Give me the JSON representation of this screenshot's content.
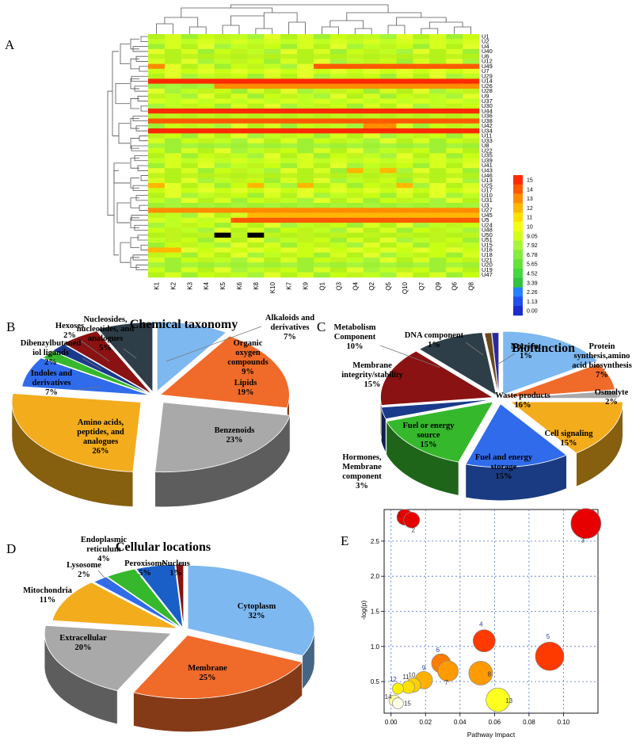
{
  "panels": {
    "A": "A",
    "B": "B",
    "C": "C",
    "D": "D",
    "E": "E"
  },
  "chart_data": [
    {
      "id": "A",
      "type": "heatmap",
      "title": "",
      "columns": [
        "K1",
        "K2",
        "K3",
        "K4",
        "K5",
        "K6",
        "K8",
        "K10",
        "K7",
        "K9",
        "Q1",
        "Q3",
        "Q4",
        "Q2",
        "Q5",
        "Q10",
        "Q7",
        "Q9",
        "Q6",
        "Q8"
      ],
      "rows": [
        "U1",
        "U2",
        "U4",
        "U40",
        "U6",
        "U12",
        "U49",
        "U7",
        "U29",
        "U14",
        "U26",
        "U28",
        "U9",
        "U37",
        "U30",
        "U44",
        "U36",
        "U38",
        "U42",
        "U34",
        "U11",
        "U33",
        "U8",
        "U22",
        "U35",
        "U39",
        "U41",
        "U43",
        "U46",
        "U13",
        "U25",
        "U17",
        "U10",
        "U31",
        "U3",
        "U27",
        "U45",
        "U5",
        "U24",
        "U48",
        "U50",
        "U51",
        "U15",
        "U16",
        "U18",
        "U21",
        "U20",
        "U19",
        "U47"
      ],
      "highlight_rows": [
        {
          "row": "U49",
          "value": 14,
          "cols": "Q1-Q8"
        },
        {
          "row": "U49",
          "value": 13,
          "cols": "K1"
        },
        {
          "row": "U14",
          "value": 15,
          "cols": "all"
        },
        {
          "row": "U26",
          "value": 13,
          "cols": "K5-Q8"
        },
        {
          "row": "U44",
          "value": 15,
          "cols": "all"
        },
        {
          "row": "U38",
          "value": 14,
          "cols": "all"
        },
        {
          "row": "U42",
          "value": 13,
          "cols": "Q2,Q5"
        },
        {
          "row": "U34",
          "value": 15,
          "cols": "all"
        },
        {
          "row": "U43",
          "value": 12,
          "cols": "Q4,Q5"
        },
        {
          "row": "U25",
          "value": 12,
          "cols": "K1,K8,K9,Q10"
        },
        {
          "row": "U27",
          "value": 13,
          "cols": "K1-Q8"
        },
        {
          "row": "U45",
          "value": 12,
          "cols": "K8-Q8"
        },
        {
          "row": "U5",
          "value": 14,
          "cols": "K6-Q8"
        },
        {
          "row": "U16",
          "value": 12,
          "cols": "K1,K2"
        }
      ],
      "missing_cells": [
        {
          "row": "U50",
          "col": "K5"
        },
        {
          "row": "U50",
          "col": "K8"
        }
      ],
      "colorbar": {
        "ticks": [
          "15",
          "14",
          "13",
          "12",
          "11",
          "10",
          "9.05",
          "7.92",
          "6.78",
          "5.65",
          "4.52",
          "3.39",
          "2.26",
          "1.13",
          "0.00"
        ],
        "colors": [
          "#ff2a00",
          "#ff5a00",
          "#ff8c00",
          "#ffb700",
          "#ffe000",
          "#f4ff10",
          "#d2ff1a",
          "#a8f53a",
          "#84ec3c",
          "#63e23e",
          "#42d83f",
          "#2fc43f",
          "#2680ff",
          "#2250ea",
          "#1c2ccf"
        ]
      }
    },
    {
      "id": "B",
      "type": "pie",
      "title": "Chemical taxonomy",
      "slices": [
        {
          "label": "Organic oxygen compounds",
          "value": 9,
          "pct": "9%",
          "color": "#7db8f0"
        },
        {
          "label": "Lipids",
          "value": 19,
          "pct": "19%",
          "color": "#f06a2a"
        },
        {
          "label": "Benzenoids",
          "value": 23,
          "pct": "23%",
          "color": "#a9a9a9"
        },
        {
          "label": "Amino acids, peptides, and analogues",
          "value": 26,
          "pct": "26%",
          "color": "#f3ac1c"
        },
        {
          "label": "Indoles and derivatives",
          "value": 7,
          "pct": "7%",
          "color": "#2f6bea"
        },
        {
          "label": "Dibenzylbutaned iol ligands",
          "value": 2,
          "pct": "2%",
          "color": "#36b82d"
        },
        {
          "label": "Hexoses",
          "value": 2,
          "pct": "2%",
          "color": "#1a3a8c"
        },
        {
          "label": "Nucleosides, nucleotides, and analogues",
          "value": 5,
          "pct": "5%",
          "color": "#8a1212"
        },
        {
          "label": "Alkaloids and derivatives",
          "value": 7,
          "pct": "7%",
          "color": "#2e3e48"
        }
      ]
    },
    {
      "id": "C",
      "type": "pie",
      "title": "Biofunction",
      "slices": [
        {
          "label": "Waste products",
          "value": 16,
          "pct": "16%",
          "color": "#7db8f0"
        },
        {
          "label": "Protein synthesis,amino acid biosynthesis",
          "value": 7,
          "pct": "7%",
          "color": "#f06a2a"
        },
        {
          "label": "Osmolyte",
          "value": 2,
          "pct": "2%",
          "color": "#a9a9a9"
        },
        {
          "label": "Cell signaling",
          "value": 15,
          "pct": "15%",
          "color": "#f3ac1c"
        },
        {
          "label": "Fuel and energy storage",
          "value": 15,
          "pct": "15%",
          "color": "#2f6bea"
        },
        {
          "label": "Fuel or energy source",
          "value": 15,
          "pct": "15%",
          "color": "#36b82d"
        },
        {
          "label": "Hormones, Membrane component",
          "value": 3,
          "pct": "3%",
          "color": "#1a3a8c"
        },
        {
          "label": "Membrane integrity/stability",
          "value": 15,
          "pct": "15%",
          "color": "#8a1212"
        },
        {
          "label": "Metabolism Component",
          "value": 10,
          "pct": "10%",
          "color": "#2e3e48"
        },
        {
          "label": "DNA component",
          "value": 1,
          "pct": "1%",
          "color": "#6b4a1e"
        },
        {
          "label": "Nutrient",
          "value": 1,
          "pct": "1%",
          "color": "#2a2aa0"
        }
      ]
    },
    {
      "id": "D",
      "type": "pie",
      "title": "Cellular locations",
      "slices": [
        {
          "label": "Cytoplasm",
          "value": 32,
          "pct": "32%",
          "color": "#7db8f0"
        },
        {
          "label": "Membrane",
          "value": 25,
          "pct": "25%",
          "color": "#f06a2a"
        },
        {
          "label": "Extracellular",
          "value": 20,
          "pct": "20%",
          "color": "#a9a9a9"
        },
        {
          "label": "Mitochondria",
          "value": 11,
          "pct": "11%",
          "color": "#f3ac1c"
        },
        {
          "label": "Lysosome",
          "value": 2,
          "pct": "2%",
          "color": "#2f6bea"
        },
        {
          "label": "Endoplasmic reticulum",
          "value": 4,
          "pct": "4%",
          "color": "#36b82d"
        },
        {
          "label": "Peroxisome",
          "value": 5,
          "pct": "5%",
          "color": "#1a5fc8"
        },
        {
          "label": "Nucleus",
          "value": 1,
          "pct": "1%",
          "color": "#8a1212"
        }
      ]
    },
    {
      "id": "E",
      "type": "scatter",
      "title": "",
      "xlabel": "Pathway Impact",
      "ylabel": "-log(p)",
      "xlim": [
        -0.004,
        0.12
      ],
      "ylim": [
        0.05,
        2.95
      ],
      "xticks": [
        "0.00",
        "0.02",
        "0.04",
        "0.06",
        "0.08",
        "0.10"
      ],
      "yticks": [
        "0.5",
        "1.0",
        "1.5",
        "2.0",
        "2.5"
      ],
      "points": [
        {
          "id": "1",
          "x": 0.008,
          "y": 2.84,
          "size": 10,
          "color": "#e60000"
        },
        {
          "id": "2",
          "x": 0.012,
          "y": 2.8,
          "size": 10,
          "color": "#e60000"
        },
        {
          "id": "3",
          "x": 0.113,
          "y": 2.75,
          "size": 19,
          "color": "#e60000"
        },
        {
          "id": "4",
          "x": 0.054,
          "y": 1.08,
          "size": 14,
          "color": "#ff3a00"
        },
        {
          "id": "5",
          "x": 0.092,
          "y": 0.86,
          "size": 18,
          "color": "#ff3a00"
        },
        {
          "id": "6",
          "x": 0.029,
          "y": 0.76,
          "size": 12,
          "color": "#ff7a00"
        },
        {
          "id": "7",
          "x": 0.033,
          "y": 0.65,
          "size": 13,
          "color": "#ff9a00"
        },
        {
          "id": "8",
          "x": 0.052,
          "y": 0.62,
          "size": 15,
          "color": "#ff9a00"
        },
        {
          "id": "9",
          "x": 0.019,
          "y": 0.52,
          "size": 11,
          "color": "#ffb000"
        },
        {
          "id": "10",
          "x": 0.013,
          "y": 0.45,
          "size": 9,
          "color": "#ffd000"
        },
        {
          "id": "11",
          "x": 0.01,
          "y": 0.42,
          "size": 8,
          "color": "#ffe000"
        },
        {
          "id": "12",
          "x": 0.004,
          "y": 0.4,
          "size": 7,
          "color": "#fff000"
        },
        {
          "id": "13",
          "x": 0.062,
          "y": 0.24,
          "size": 15,
          "color": "#ffff20"
        },
        {
          "id": "14",
          "x": 0.002,
          "y": 0.23,
          "size": 7,
          "color": "#ffffa0"
        },
        {
          "id": "15",
          "x": 0.004,
          "y": 0.19,
          "size": 7,
          "color": "#ffffe8"
        }
      ]
    }
  ]
}
